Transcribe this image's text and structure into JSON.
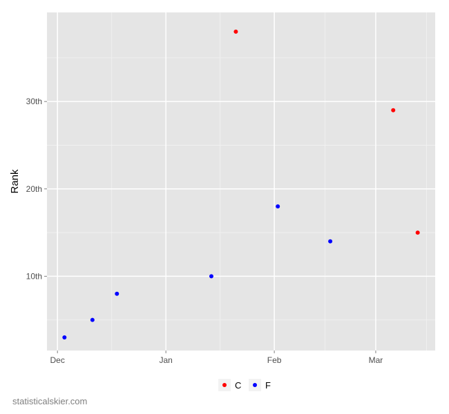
{
  "chart_data": {
    "type": "scatter",
    "ylabel": "Rank",
    "xlabel": "",
    "x_ticks": [
      {
        "label": "Dec",
        "date": "2011-12-01"
      },
      {
        "label": "Jan",
        "date": "2012-01-01"
      },
      {
        "label": "Feb",
        "date": "2012-02-01"
      },
      {
        "label": "Mar",
        "date": "2012-03-01"
      }
    ],
    "y_ticks": [
      {
        "label": "10th",
        "value": 10
      },
      {
        "label": "20th",
        "value": 20
      },
      {
        "label": "30th",
        "value": 30
      }
    ],
    "xlim": [
      "2011-11-28",
      "2012-03-18"
    ],
    "ylim": [
      1.5,
      40.2
    ],
    "grid": true,
    "legend_position": "bottom",
    "series": [
      {
        "name": "C",
        "color": "#ff0000",
        "points": [
          {
            "x": "2012-01-21",
            "y": 38
          },
          {
            "x": "2012-03-06",
            "y": 29
          },
          {
            "x": "2012-03-13",
            "y": 15
          }
        ]
      },
      {
        "name": "F",
        "color": "#0000ff",
        "points": [
          {
            "x": "2011-12-03",
            "y": 3
          },
          {
            "x": "2011-12-11",
            "y": 5
          },
          {
            "x": "2011-12-18",
            "y": 8
          },
          {
            "x": "2012-01-14",
            "y": 10
          },
          {
            "x": "2012-02-02",
            "y": 18
          },
          {
            "x": "2012-02-17",
            "y": 14
          }
        ]
      }
    ]
  },
  "caption": "statisticalskier.com"
}
